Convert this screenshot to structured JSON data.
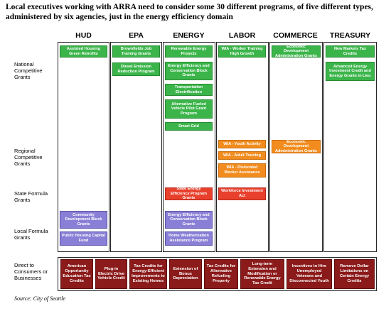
{
  "title": "Local executives working with ARRA need to consider some 30 different programs, of five different types, administered by six agencies, just in the energy efficiency domain",
  "agencies": [
    "HUD",
    "EPA",
    "ENERGY",
    "LABOR",
    "COMMERCE",
    "TREASURY"
  ],
  "row_labels": {
    "national": "National\nCompetitive\nGrants",
    "regional": "Regional\nCompetitive\nGrants",
    "state": "State Formula\nGrants",
    "local": "Local Formula\nGrants",
    "direct": "Direct to\nConsumers or\nBusinesses"
  },
  "programs": {
    "hud": {
      "assisted_housing": "Assisted Housing Green Retrofits",
      "cdbg": "Community Development Block Grants",
      "public_housing": "Public Housing Capital Fund"
    },
    "epa": {
      "brownfields": "Brownfields Job Training Grants",
      "diesel": "Diesel Emission Reduction Program"
    },
    "energy": {
      "renewable": "Renewable Energy Projects",
      "eecbg_national": "Energy Efficiency and Conservation Block Grants",
      "transportation": "Transportation Electrification",
      "alt_fuel": "Alternative Fueled Vehicle Pilot Grant Program",
      "smart_grid": "Smart Grid",
      "state_energy": "State Energy Efficiency Program Grants",
      "eecbg_local": "Energy Efficiency and Conservation Block Grants",
      "weatherization": "Home Weatherization Assistance Program"
    },
    "labor": {
      "wia_green": "WIA - Worker Training High Growth",
      "wia_youth": "WIA - Youth Activity",
      "wia_adult": "WIA - Adult Training",
      "wia_dislocated": "WIA - Dislocated Worker Assistance",
      "workforce": "Workforce Investment Act"
    },
    "commerce": {
      "eda_national": "Economic Development Administration Grants",
      "eda_regional": "Economic Development Administration Grants"
    },
    "treasury": {
      "new_markets": "New Markets Tax Credits",
      "advanced_energy": "Advanced Energy Investment Credit and Energy Grants in Lieu"
    }
  },
  "direct": [
    "American Opportunity Education Tax Credits",
    "Plug-in Electric Drive Vehicle Credit",
    "Tax Credits for Energy-Efficient Improvements to Existing Homes",
    "Extension of Bonus Depreciation",
    "Tax Credits for Alternative Refueling Property",
    "Long-term Extension and Modification or Renewable Energy Tax Credit",
    "Incentives to Hire Unemployed Veterans and Disconnected Youth",
    "Remove Dollar Limitations on Certain Energy Credits"
  ],
  "source": "Source:  City of Seattle",
  "colors": {
    "national": "#3bb54a",
    "regional": "#f28c1e",
    "state": "#e8402c",
    "local": "#8a7fd6",
    "direct": "#8b1a1a"
  }
}
